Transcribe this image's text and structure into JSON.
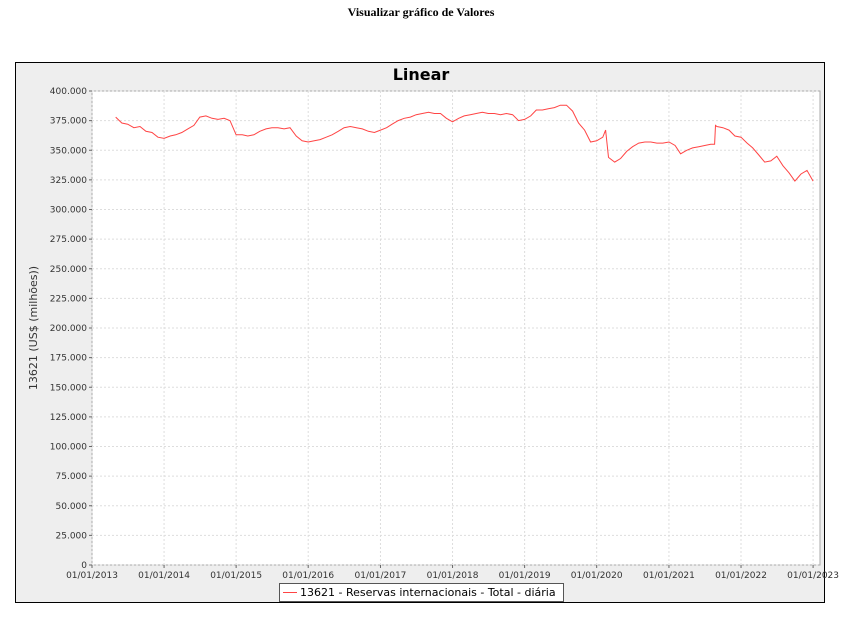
{
  "page": {
    "heading": "Visualizar gráfico de Valores"
  },
  "chart_data": {
    "type": "line",
    "title": "Linear",
    "ylabel": "13621 (US$ (milhões))",
    "xlabel": "",
    "ylim": [
      0,
      400000
    ],
    "xlim": [
      "2013-01-01",
      "2023-02-05"
    ],
    "x_ticks": [
      "01/01/2013",
      "01/01/2014",
      "01/01/2015",
      "01/01/2016",
      "01/01/2017",
      "01/01/2018",
      "01/01/2019",
      "01/01/2020",
      "01/01/2021",
      "01/01/2022",
      "01/01/2023"
    ],
    "y_ticks": [
      "0",
      "25.000",
      "50.000",
      "75.000",
      "100.000",
      "125.000",
      "150.000",
      "175.000",
      "200.000",
      "225.000",
      "250.000",
      "275.000",
      "300.000",
      "325.000",
      "350.000",
      "375.000",
      "400.000"
    ],
    "grid": true,
    "legend_position": "bottom",
    "series": [
      {
        "name": "13621 - Reservas internacionais - Total - diária",
        "color": "#ff4444",
        "points": [
          [
            "2013-05-01",
            378000
          ],
          [
            "2013-06-01",
            373000
          ],
          [
            "2013-07-01",
            372000
          ],
          [
            "2013-08-01",
            369000
          ],
          [
            "2013-09-01",
            370000
          ],
          [
            "2013-10-01",
            366000
          ],
          [
            "2013-11-01",
            365000
          ],
          [
            "2013-12-01",
            361000
          ],
          [
            "2014-01-01",
            360000
          ],
          [
            "2014-02-01",
            362000
          ],
          [
            "2014-03-01",
            363000
          ],
          [
            "2014-04-01",
            365000
          ],
          [
            "2014-05-01",
            368000
          ],
          [
            "2014-06-01",
            371000
          ],
          [
            "2014-07-01",
            378000
          ],
          [
            "2014-08-01",
            379000
          ],
          [
            "2014-09-01",
            377000
          ],
          [
            "2014-10-01",
            376000
          ],
          [
            "2014-11-01",
            377000
          ],
          [
            "2014-12-01",
            375000
          ],
          [
            "2015-01-01",
            363000
          ],
          [
            "2015-02-01",
            363000
          ],
          [
            "2015-03-01",
            362000
          ],
          [
            "2015-04-01",
            363000
          ],
          [
            "2015-05-01",
            366000
          ],
          [
            "2015-06-01",
            368000
          ],
          [
            "2015-07-01",
            369000
          ],
          [
            "2015-08-01",
            369000
          ],
          [
            "2015-09-01",
            368000
          ],
          [
            "2015-10-01",
            369000
          ],
          [
            "2015-11-01",
            362000
          ],
          [
            "2015-12-01",
            358000
          ],
          [
            "2016-01-01",
            357000
          ],
          [
            "2016-02-01",
            358000
          ],
          [
            "2016-03-01",
            359000
          ],
          [
            "2016-04-01",
            361000
          ],
          [
            "2016-05-01",
            363000
          ],
          [
            "2016-06-01",
            366000
          ],
          [
            "2016-07-01",
            369000
          ],
          [
            "2016-08-01",
            370000
          ],
          [
            "2016-09-01",
            369000
          ],
          [
            "2016-10-01",
            368000
          ],
          [
            "2016-11-01",
            366000
          ],
          [
            "2016-12-01",
            365000
          ],
          [
            "2017-01-01",
            367000
          ],
          [
            "2017-02-01",
            369000
          ],
          [
            "2017-03-01",
            372000
          ],
          [
            "2017-04-01",
            375000
          ],
          [
            "2017-05-01",
            377000
          ],
          [
            "2017-06-01",
            378000
          ],
          [
            "2017-07-01",
            380000
          ],
          [
            "2017-08-01",
            381000
          ],
          [
            "2017-09-01",
            382000
          ],
          [
            "2017-10-01",
            381000
          ],
          [
            "2017-11-01",
            381000
          ],
          [
            "2017-12-01",
            377000
          ],
          [
            "2018-01-01",
            374000
          ],
          [
            "2018-02-01",
            377000
          ],
          [
            "2018-03-01",
            379000
          ],
          [
            "2018-04-01",
            380000
          ],
          [
            "2018-05-01",
            381000
          ],
          [
            "2018-06-01",
            382000
          ],
          [
            "2018-07-01",
            381000
          ],
          [
            "2018-08-01",
            381000
          ],
          [
            "2018-09-01",
            380000
          ],
          [
            "2018-10-01",
            381000
          ],
          [
            "2018-11-01",
            380000
          ],
          [
            "2018-12-01",
            375000
          ],
          [
            "2019-01-01",
            376000
          ],
          [
            "2019-02-01",
            379000
          ],
          [
            "2019-03-01",
            384000
          ],
          [
            "2019-04-01",
            384000
          ],
          [
            "2019-05-01",
            385000
          ],
          [
            "2019-06-01",
            386000
          ],
          [
            "2019-07-01",
            388000
          ],
          [
            "2019-08-01",
            388000
          ],
          [
            "2019-09-01",
            383000
          ],
          [
            "2019-10-01",
            373000
          ],
          [
            "2019-11-01",
            367000
          ],
          [
            "2019-12-01",
            357000
          ],
          [
            "2020-01-01",
            358000
          ],
          [
            "2020-02-01",
            361000
          ],
          [
            "2020-02-15",
            367000
          ],
          [
            "2020-03-01",
            344000
          ],
          [
            "2020-04-01",
            340000
          ],
          [
            "2020-05-01",
            343000
          ],
          [
            "2020-06-01",
            349000
          ],
          [
            "2020-07-01",
            353000
          ],
          [
            "2020-08-01",
            356000
          ],
          [
            "2020-09-01",
            357000
          ],
          [
            "2020-10-01",
            357000
          ],
          [
            "2020-11-01",
            356000
          ],
          [
            "2020-12-01",
            356000
          ],
          [
            "2021-01-01",
            357000
          ],
          [
            "2021-02-01",
            354000
          ],
          [
            "2021-03-01",
            347000
          ],
          [
            "2021-04-01",
            350000
          ],
          [
            "2021-05-01",
            352000
          ],
          [
            "2021-06-01",
            353000
          ],
          [
            "2021-07-01",
            354000
          ],
          [
            "2021-08-01",
            355000
          ],
          [
            "2021-08-20",
            355000
          ],
          [
            "2021-08-25",
            371000
          ],
          [
            "2021-09-01",
            370000
          ],
          [
            "2021-10-01",
            369000
          ],
          [
            "2021-11-01",
            367000
          ],
          [
            "2021-12-01",
            362000
          ],
          [
            "2022-01-01",
            361000
          ],
          [
            "2022-02-01",
            356000
          ],
          [
            "2022-03-01",
            352000
          ],
          [
            "2022-04-01",
            346000
          ],
          [
            "2022-05-01",
            340000
          ],
          [
            "2022-06-01",
            341000
          ],
          [
            "2022-07-01",
            345000
          ],
          [
            "2022-08-01",
            337000
          ],
          [
            "2022-09-01",
            331000
          ],
          [
            "2022-10-01",
            324000
          ],
          [
            "2022-11-01",
            330000
          ],
          [
            "2022-12-01",
            333000
          ],
          [
            "2023-01-01",
            324000
          ]
        ]
      }
    ]
  }
}
